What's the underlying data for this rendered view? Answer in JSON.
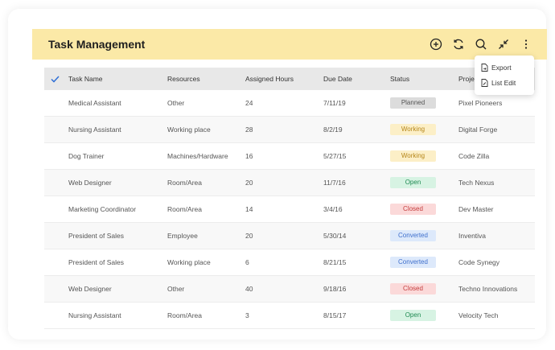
{
  "header": {
    "title": "Task Management"
  },
  "toolbar": {
    "icons": [
      "add-circle-icon",
      "refresh-icon",
      "search-icon",
      "collapse-icon",
      "more-vertical-icon"
    ]
  },
  "menu": {
    "items": [
      {
        "label": "Export",
        "icon": "file-export-icon"
      },
      {
        "label": "List Edit",
        "icon": "file-edit-icon"
      }
    ]
  },
  "table": {
    "columns": [
      "Task Name",
      "Resources",
      "Assigned Hours",
      "Due Date",
      "Status",
      "Proje"
    ],
    "rows": [
      {
        "task": "Medical Assistant",
        "resource": "Other",
        "hours": "24",
        "due": "7/11/19",
        "status": "Planned",
        "project": "Pixel Pioneers"
      },
      {
        "task": "Nursing Assistant",
        "resource": "Working place",
        "hours": "28",
        "due": "8/2/19",
        "status": "Working",
        "project": "Digital Forge"
      },
      {
        "task": "Dog Trainer",
        "resource": "Machines/Hardware",
        "hours": "16",
        "due": "5/27/15",
        "status": "Working",
        "project": "Code Zilla"
      },
      {
        "task": "Web Designer",
        "resource": "Room/Area",
        "hours": "20",
        "due": "11/7/16",
        "status": "Open",
        "project": "Tech Nexus"
      },
      {
        "task": "Marketing Coordinator",
        "resource": "Room/Area",
        "hours": "14",
        "due": "3/4/16",
        "status": "Closed",
        "project": "Dev Master"
      },
      {
        "task": "President of Sales",
        "resource": "Employee",
        "hours": "20",
        "due": "5/30/14",
        "status": "Converted",
        "project": "Inventiva"
      },
      {
        "task": "President of Sales",
        "resource": "Working place",
        "hours": "6",
        "due": "8/21/15",
        "status": "Converted",
        "project": "Code Synegy"
      },
      {
        "task": "Web Designer",
        "resource": "Other",
        "hours": "40",
        "due": "9/18/16",
        "status": "Closed",
        "project": "Techno Innovations"
      },
      {
        "task": "Nursing Assistant",
        "resource": "Room/Area",
        "hours": "3",
        "due": "8/15/17",
        "status": "Open",
        "project": "Velocity Tech"
      }
    ]
  },
  "colors": {
    "header_bg": "#fbe9a7",
    "check_accent": "#2f6fd6"
  }
}
